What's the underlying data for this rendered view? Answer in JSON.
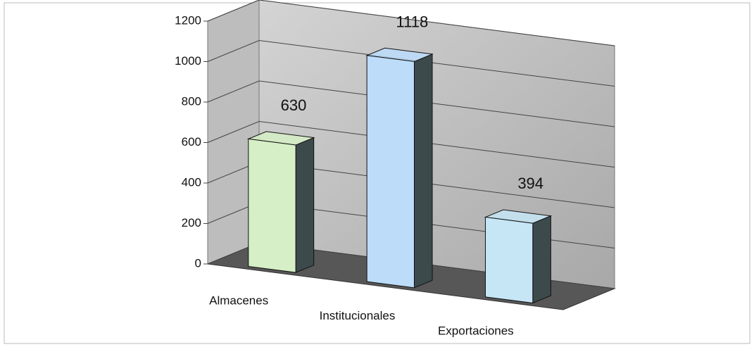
{
  "chart_data": {
    "type": "bar3d",
    "categories": [
      "Almacenes",
      "Institucionales",
      "Exportaciones"
    ],
    "values": [
      630,
      1118,
      394
    ],
    "colors": [
      "#d6efc6",
      "#bcdcfa",
      "#c6e6f6"
    ],
    "ylim": [
      0,
      1200
    ],
    "yticks": [
      0,
      200,
      400,
      600,
      800,
      1000,
      1200
    ],
    "grid": true
  }
}
